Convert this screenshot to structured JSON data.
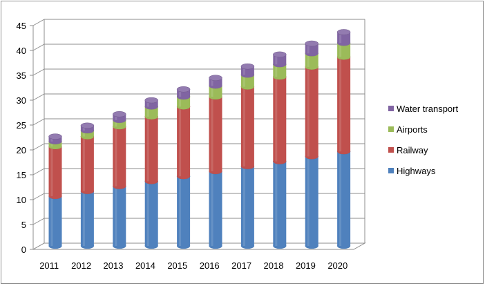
{
  "chart_data": {
    "type": "bar",
    "stacked": true,
    "three_d": true,
    "categories": [
      "2011",
      "2012",
      "2013",
      "2014",
      "2015",
      "2016",
      "2017",
      "2018",
      "2019",
      "2020"
    ],
    "series": [
      {
        "name": "Highways",
        "color": "#4f81bd",
        "values": [
          10,
          11,
          12,
          13,
          14,
          15,
          16,
          17,
          18,
          19
        ]
      },
      {
        "name": "Railway",
        "color": "#c0504d",
        "values": [
          10,
          11,
          12,
          13,
          14,
          15,
          16,
          17,
          18,
          19
        ]
      },
      {
        "name": "Airports",
        "color": "#9bbb59",
        "values": [
          1,
          1.2,
          1.3,
          2,
          2,
          2.2,
          2.4,
          2.5,
          2.7,
          2.8
        ]
      },
      {
        "name": "Water transport",
        "color": "#8064a2",
        "values": [
          1,
          1,
          1.2,
          1.3,
          1.5,
          1.6,
          1.7,
          2,
          2,
          2.2
        ]
      }
    ],
    "y_ticks": [
      "0",
      "5",
      "10",
      "15",
      "20",
      "25",
      "30",
      "35",
      "40",
      "45"
    ],
    "ylim": [
      0,
      45
    ],
    "title": "",
    "xlabel": "",
    "ylabel": "",
    "grid": true,
    "legend_position": "right"
  }
}
